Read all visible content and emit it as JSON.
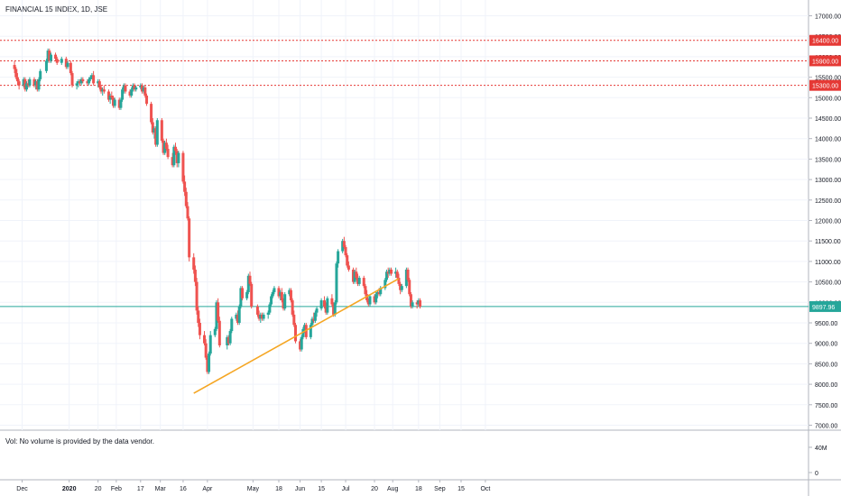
{
  "header": {
    "symbol_title": "FINANCIAL 15 INDEX, 1D, JSE"
  },
  "volume_pane": {
    "label": "Vol: No volume is provided by the data vendor.",
    "axis_labels": [
      "40M",
      "0"
    ]
  },
  "colors": {
    "up": "#26a69a",
    "down": "#ef5350",
    "trendline": "#f5a623",
    "level": "#e53935",
    "current_price": "#26a69a",
    "axis_text": "#131722",
    "grid": "#f0f3fa"
  },
  "chart_data": {
    "type": "candlestick",
    "title": "FINANCIAL 15 INDEX, 1D, JSE",
    "x_tick_labels": [
      "Dec",
      "2020",
      "20",
      "Feb",
      "17",
      "Mar",
      "16",
      "Apr",
      "May",
      "18",
      "Jun",
      "15",
      "Jul",
      "20",
      "Aug",
      "18",
      "Sep",
      "15",
      "Oct"
    ],
    "y_tick_labels": [
      "17000.00",
      "16500.00",
      "16000.00",
      "15500.00",
      "15000.00",
      "14500.00",
      "14000.00",
      "13500.00",
      "13000.00",
      "12500.00",
      "12000.00",
      "11500.00",
      "11000.00",
      "10500.00",
      "10000.00",
      "9500.00",
      "9000.00",
      "8500.00",
      "8000.00",
      "7500.00",
      "7000.00"
    ],
    "ylim": [
      6900,
      17300
    ],
    "horizontal_levels": [
      {
        "label": "16400.00",
        "value": 16400
      },
      {
        "label": "15900.00",
        "value": 15900
      },
      {
        "label": "15300.00",
        "value": 15300
      }
    ],
    "current_price": {
      "label": "9897.96",
      "value": 9897.96
    },
    "trendline": {
      "from": {
        "date": "2020-03-23",
        "value": 7780
      },
      "to": {
        "date": "2020-08-05",
        "value": 10580
      }
    },
    "candles": [
      [
        "2019-11-26",
        15800,
        15900,
        15600,
        15700
      ],
      [
        "2019-11-27",
        15700,
        15750,
        15450,
        15500
      ],
      [
        "2019-11-28",
        15500,
        15600,
        15300,
        15400
      ],
      [
        "2019-11-29",
        15400,
        15450,
        15200,
        15300
      ],
      [
        "2019-12-02",
        15300,
        15500,
        15250,
        15450
      ],
      [
        "2019-12-03",
        15450,
        15500,
        15150,
        15200
      ],
      [
        "2019-12-04",
        15200,
        15400,
        15150,
        15350
      ],
      [
        "2019-12-05",
        15350,
        15450,
        15250,
        15300
      ],
      [
        "2019-12-06",
        15300,
        15500,
        15250,
        15450
      ],
      [
        "2019-12-09",
        15450,
        15500,
        15250,
        15300
      ],
      [
        "2019-12-10",
        15300,
        15450,
        15200,
        15400
      ],
      [
        "2019-12-11",
        15400,
        15450,
        15150,
        15200
      ],
      [
        "2019-12-12",
        15200,
        15500,
        15150,
        15450
      ],
      [
        "2019-12-13",
        15450,
        15700,
        15400,
        15650
      ],
      [
        "2019-12-17",
        15650,
        15950,
        15600,
        15900
      ],
      [
        "2019-12-18",
        15900,
        16200,
        15850,
        16150
      ],
      [
        "2019-12-19",
        16150,
        16200,
        15850,
        15900
      ],
      [
        "2019-12-20",
        15900,
        16100,
        15850,
        16050
      ],
      [
        "2019-12-23",
        16050,
        16100,
        15900,
        15950
      ],
      [
        "2019-12-24",
        15950,
        16000,
        15800,
        15850
      ],
      [
        "2019-12-27",
        15850,
        16000,
        15800,
        15950
      ],
      [
        "2019-12-30",
        15950,
        16000,
        15700,
        15750
      ],
      [
        "2019-12-31",
        15750,
        15900,
        15700,
        15850
      ],
      [
        "2020-01-02",
        15850,
        15900,
        15550,
        15600
      ],
      [
        "2020-01-03",
        15600,
        15650,
        15250,
        15300
      ],
      [
        "2020-01-06",
        15300,
        15400,
        15200,
        15350
      ],
      [
        "2020-01-07",
        15350,
        15450,
        15250,
        15400
      ],
      [
        "2020-01-08",
        15400,
        15450,
        15300,
        15350
      ],
      [
        "2020-01-09",
        15350,
        15500,
        15300,
        15450
      ],
      [
        "2020-01-10",
        15450,
        15500,
        15350,
        15400
      ],
      [
        "2020-01-13",
        15400,
        15450,
        15300,
        15350
      ],
      [
        "2020-01-14",
        15350,
        15500,
        15300,
        15450
      ],
      [
        "2020-01-15",
        15450,
        15550,
        15400,
        15500
      ],
      [
        "2020-01-16",
        15500,
        15600,
        15450,
        15550
      ],
      [
        "2020-01-17",
        15550,
        15650,
        15300,
        15350
      ],
      [
        "2020-01-20",
        15350,
        15450,
        15250,
        15400
      ],
      [
        "2020-01-21",
        15400,
        15450,
        15200,
        15250
      ],
      [
        "2020-01-22",
        15250,
        15300,
        15100,
        15150
      ],
      [
        "2020-01-23",
        15150,
        15250,
        15050,
        15200
      ],
      [
        "2020-01-24",
        15200,
        15300,
        15100,
        15150
      ],
      [
        "2020-01-27",
        15150,
        15200,
        14900,
        14950
      ],
      [
        "2020-01-28",
        14950,
        15100,
        14850,
        15050
      ],
      [
        "2020-01-29",
        15050,
        15150,
        14950,
        15000
      ],
      [
        "2020-01-30",
        15000,
        15050,
        14750,
        14800
      ],
      [
        "2020-01-31",
        14800,
        15000,
        14750,
        14950
      ],
      [
        "2020-02-03",
        14950,
        15000,
        14700,
        14750
      ],
      [
        "2020-02-04",
        14750,
        15000,
        14700,
        14950
      ],
      [
        "2020-02-05",
        14950,
        15250,
        14900,
        15200
      ],
      [
        "2020-02-06",
        15200,
        15350,
        15100,
        15300
      ],
      [
        "2020-02-07",
        15300,
        15350,
        15100,
        15150
      ],
      [
        "2020-02-10",
        15150,
        15200,
        15000,
        15050
      ],
      [
        "2020-02-11",
        15050,
        15250,
        15000,
        15200
      ],
      [
        "2020-02-12",
        15200,
        15350,
        15150,
        15300
      ],
      [
        "2020-02-13",
        15300,
        15350,
        15150,
        15200
      ],
      [
        "2020-02-14",
        15200,
        15300,
        15150,
        15250
      ],
      [
        "2020-02-17",
        15250,
        15350,
        15200,
        15300
      ],
      [
        "2020-02-18",
        15300,
        15350,
        15100,
        15150
      ],
      [
        "2020-02-19",
        15150,
        15300,
        15100,
        15250
      ],
      [
        "2020-02-20",
        15250,
        15300,
        15000,
        15050
      ],
      [
        "2020-02-21",
        15050,
        15100,
        14800,
        14850
      ],
      [
        "2020-02-24",
        14850,
        14900,
        14350,
        14400
      ],
      [
        "2020-02-25",
        14400,
        14500,
        14100,
        14150
      ],
      [
        "2020-02-26",
        14150,
        14300,
        14000,
        14250
      ],
      [
        "2020-02-27",
        14250,
        14300,
        13800,
        13850
      ],
      [
        "2020-02-28",
        13850,
        14500,
        13800,
        14450
      ],
      [
        "2020-03-02",
        14450,
        14500,
        13900,
        13950
      ],
      [
        "2020-03-03",
        13950,
        14000,
        13600,
        13650
      ],
      [
        "2020-03-04",
        13650,
        13950,
        13600,
        13900
      ],
      [
        "2020-03-05",
        13900,
        14000,
        13700,
        13750
      ],
      [
        "2020-03-06",
        13750,
        13850,
        13500,
        13550
      ],
      [
        "2020-03-09",
        13550,
        13650,
        13300,
        13350
      ],
      [
        "2020-03-10",
        13350,
        13850,
        13300,
        13800
      ],
      [
        "2020-03-11",
        13800,
        13900,
        13600,
        13700
      ],
      [
        "2020-03-12",
        13700,
        13750,
        13300,
        13400
      ],
      [
        "2020-03-13",
        13400,
        13700,
        13300,
        13650
      ],
      [
        "2020-03-16",
        13650,
        13700,
        12900,
        12950
      ],
      [
        "2020-03-17",
        12950,
        13100,
        12600,
        12700
      ],
      [
        "2020-03-18",
        12700,
        12800,
        12300,
        12350
      ],
      [
        "2020-03-19",
        12350,
        12450,
        12000,
        12050
      ],
      [
        "2020-03-20",
        12050,
        12100,
        11000,
        11100
      ],
      [
        "2020-03-23",
        11100,
        11200,
        10700,
        10800
      ],
      [
        "2020-03-24",
        10800,
        10900,
        10400,
        10500
      ],
      [
        "2020-03-25",
        10500,
        10600,
        9700,
        9800
      ],
      [
        "2020-03-26",
        9800,
        9900,
        9400,
        9500
      ],
      [
        "2020-03-27",
        9500,
        9600,
        9100,
        9200
      ],
      [
        "2020-03-30",
        9200,
        9300,
        8950,
        9000
      ],
      [
        "2020-03-31",
        9000,
        9100,
        8600,
        8650
      ],
      [
        "2020-04-01",
        8650,
        8700,
        8250,
        8300
      ],
      [
        "2020-04-02",
        8300,
        8800,
        8250,
        8750
      ],
      [
        "2020-04-03",
        8750,
        9300,
        8700,
        9200
      ],
      [
        "2020-04-06",
        9200,
        9400,
        9150,
        9350
      ],
      [
        "2020-04-07",
        9350,
        10050,
        9300,
        10000
      ],
      [
        "2020-04-08",
        10000,
        10100,
        9500,
        9550
      ],
      [
        "2020-04-09",
        9550,
        9650,
        8900,
        8950
      ],
      [
        "2020-04-14",
        8950,
        9200,
        8850,
        9150
      ],
      [
        "2020-04-15",
        9150,
        9200,
        8950,
        9000
      ],
      [
        "2020-04-16",
        9000,
        9350,
        8950,
        9300
      ],
      [
        "2020-04-17",
        9300,
        9650,
        9250,
        9600
      ],
      [
        "2020-04-20",
        9600,
        9750,
        9550,
        9700
      ],
      [
        "2020-04-21",
        9700,
        9800,
        9450,
        9500
      ],
      [
        "2020-04-22",
        9500,
        9950,
        9450,
        9900
      ],
      [
        "2020-04-23",
        9900,
        10400,
        9850,
        10350
      ],
      [
        "2020-04-24",
        10350,
        10400,
        10050,
        10100
      ],
      [
        "2020-04-27",
        10100,
        10300,
        10050,
        10250
      ],
      [
        "2020-04-28",
        10250,
        10700,
        10200,
        10650
      ],
      [
        "2020-04-29",
        10650,
        10750,
        10400,
        10450
      ],
      [
        "2020-04-30",
        10450,
        10500,
        9850,
        9900
      ],
      [
        "2020-05-04",
        9900,
        9950,
        9650,
        9700
      ],
      [
        "2020-05-05",
        9700,
        9800,
        9550,
        9600
      ],
      [
        "2020-05-06",
        9600,
        9750,
        9500,
        9700
      ],
      [
        "2020-05-07",
        9700,
        9750,
        9550,
        9600
      ],
      [
        "2020-05-08",
        9600,
        9750,
        9550,
        9700
      ],
      [
        "2020-05-11",
        9700,
        9800,
        9600,
        9750
      ],
      [
        "2020-05-12",
        9750,
        10000,
        9700,
        9950
      ],
      [
        "2020-05-13",
        9950,
        10200,
        9900,
        10150
      ],
      [
        "2020-05-14",
        10150,
        10300,
        10100,
        10250
      ],
      [
        "2020-05-15",
        10250,
        10400,
        10200,
        10350
      ],
      [
        "2020-05-18",
        10350,
        10400,
        10100,
        10150
      ],
      [
        "2020-05-19",
        10150,
        10300,
        10050,
        10250
      ],
      [
        "2020-05-20",
        10250,
        10350,
        10000,
        10050
      ],
      [
        "2020-05-21",
        10050,
        10100,
        9800,
        9850
      ],
      [
        "2020-05-22",
        9850,
        10250,
        9800,
        10200
      ],
      [
        "2020-05-25",
        10200,
        10350,
        10150,
        10300
      ],
      [
        "2020-05-26",
        10300,
        10350,
        10000,
        10050
      ],
      [
        "2020-05-27",
        10050,
        10100,
        9650,
        9700
      ],
      [
        "2020-05-28",
        9700,
        9800,
        9400,
        9450
      ],
      [
        "2020-05-29",
        9450,
        9500,
        9000,
        9050
      ],
      [
        "2020-06-01",
        9050,
        9100,
        8800,
        8850
      ],
      [
        "2020-06-02",
        8850,
        9200,
        8800,
        9150
      ],
      [
        "2020-06-03",
        9150,
        9400,
        9100,
        9350
      ],
      [
        "2020-06-04",
        9350,
        9500,
        9250,
        9450
      ],
      [
        "2020-06-05",
        9450,
        9500,
        9100,
        9150
      ],
      [
        "2020-06-08",
        9150,
        9500,
        9100,
        9450
      ],
      [
        "2020-06-09",
        9450,
        9650,
        9400,
        9600
      ],
      [
        "2020-06-10",
        9600,
        9750,
        9500,
        9550
      ],
      [
        "2020-06-11",
        9550,
        9800,
        9500,
        9750
      ],
      [
        "2020-06-12",
        9750,
        9900,
        9650,
        9850
      ],
      [
        "2020-06-15",
        9850,
        10100,
        9800,
        10050
      ],
      [
        "2020-06-17",
        10050,
        10150,
        9850,
        9900
      ],
      [
        "2020-06-18",
        9900,
        10000,
        9700,
        9750
      ],
      [
        "2020-06-19",
        9750,
        10150,
        9700,
        10100
      ],
      [
        "2020-06-22",
        10100,
        10200,
        9900,
        9950
      ],
      [
        "2020-06-23",
        9950,
        10000,
        9650,
        9700
      ],
      [
        "2020-06-24",
        9700,
        10050,
        9650,
        10000
      ],
      [
        "2020-06-25",
        10000,
        11000,
        9950,
        10950
      ],
      [
        "2020-06-26",
        10950,
        11300,
        10850,
        11250
      ],
      [
        "2020-06-29",
        11250,
        11550,
        11200,
        11500
      ],
      [
        "2020-06-30",
        11500,
        11600,
        11300,
        11350
      ],
      [
        "2020-07-01",
        11350,
        11400,
        11100,
        11150
      ],
      [
        "2020-07-02",
        11150,
        11200,
        10850,
        10900
      ],
      [
        "2020-07-03",
        10900,
        11000,
        10750,
        10800
      ],
      [
        "2020-07-06",
        10800,
        10850,
        10450,
        10500
      ],
      [
        "2020-07-07",
        10500,
        10800,
        10450,
        10750
      ],
      [
        "2020-07-08",
        10750,
        10850,
        10550,
        10600
      ],
      [
        "2020-07-09",
        10600,
        10700,
        10400,
        10450
      ],
      [
        "2020-07-10",
        10450,
        10650,
        10400,
        10600
      ],
      [
        "2020-07-13",
        10600,
        10650,
        10350,
        10400
      ],
      [
        "2020-07-14",
        10400,
        10450,
        10150,
        10200
      ],
      [
        "2020-07-15",
        10200,
        10300,
        10000,
        10050
      ],
      [
        "2020-07-16",
        10050,
        10100,
        9900,
        9950
      ],
      [
        "2020-07-17",
        9950,
        10200,
        9900,
        10150
      ],
      [
        "2020-07-20",
        10150,
        10200,
        9950,
        10000
      ],
      [
        "2020-07-21",
        10000,
        10250,
        9950,
        10200
      ],
      [
        "2020-07-22",
        10200,
        10300,
        10100,
        10250
      ],
      [
        "2020-07-23",
        10250,
        10350,
        10150,
        10200
      ],
      [
        "2020-07-24",
        10200,
        10400,
        10150,
        10350
      ],
      [
        "2020-07-27",
        10350,
        10600,
        10300,
        10550
      ],
      [
        "2020-07-28",
        10550,
        10800,
        10500,
        10750
      ],
      [
        "2020-07-29",
        10750,
        10850,
        10600,
        10700
      ],
      [
        "2020-07-30",
        10700,
        10850,
        10650,
        10800
      ],
      [
        "2020-07-31",
        10800,
        10850,
        10650,
        10700
      ],
      [
        "2020-08-03",
        10700,
        10850,
        10600,
        10750
      ],
      [
        "2020-08-04",
        10750,
        10800,
        10550,
        10600
      ],
      [
        "2020-08-05",
        10600,
        10700,
        10400,
        10450
      ],
      [
        "2020-08-06",
        10450,
        10500,
        10200,
        10300
      ],
      [
        "2020-08-07",
        10300,
        10450,
        10250,
        10400
      ],
      [
        "2020-08-10",
        10400,
        10850,
        10350,
        10800
      ],
      [
        "2020-08-11",
        10800,
        10850,
        10500,
        10550
      ],
      [
        "2020-08-12",
        10550,
        10600,
        10150,
        10200
      ],
      [
        "2020-08-13",
        10200,
        10250,
        9850,
        9900
      ],
      [
        "2020-08-14",
        9900,
        10050,
        9850,
        10000
      ],
      [
        "2020-08-17",
        10000,
        10050,
        9850,
        9950
      ],
      [
        "2020-08-18",
        9950,
        10100,
        9900,
        10050
      ],
      [
        "2020-08-19",
        10050,
        10100,
        9850,
        9898
      ]
    ],
    "grid": true
  }
}
